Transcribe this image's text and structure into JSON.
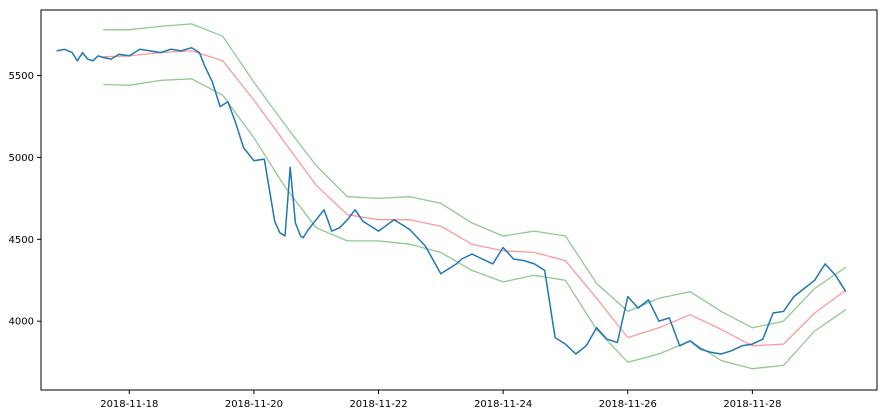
{
  "chart_data": {
    "type": "line",
    "title": "",
    "xlabel": "",
    "ylabel": "",
    "x_range": [
      "2018-11-16T14:00",
      "2018-11-30T00:00"
    ],
    "ylim": [
      3580,
      5900
    ],
    "grid": false,
    "legend": "none",
    "x_ticks": [
      "2018-11-18",
      "2018-11-20",
      "2018-11-22",
      "2018-11-24",
      "2018-11-26",
      "2018-11-28"
    ],
    "y_ticks": [
      4000,
      4500,
      5000,
      5500
    ],
    "colors": {
      "price": "#1f77b4",
      "middle": "#ff9999",
      "bands": "#90c990",
      "axes": "#000000"
    },
    "series": [
      {
        "role": "price",
        "x": [
          "2018-11-16T20:00",
          "2018-11-16T23:00",
          "2018-11-17T02:00",
          "2018-11-17T04:00",
          "2018-11-17T06:00",
          "2018-11-17T08:00",
          "2018-11-17T10:00",
          "2018-11-17T12:00",
          "2018-11-17T14:00",
          "2018-11-17T17:00",
          "2018-11-17T20:00",
          "2018-11-18T00:00",
          "2018-11-18T04:00",
          "2018-11-18T08:00",
          "2018-11-18T12:00",
          "2018-11-18T16:00",
          "2018-11-18T20:00",
          "2018-11-19T00:00",
          "2018-11-19T03:00",
          "2018-11-19T05:00",
          "2018-11-19T08:00",
          "2018-11-19T11:00",
          "2018-11-19T14:00",
          "2018-11-19T17:00",
          "2018-11-19T20:00",
          "2018-11-20T00:00",
          "2018-11-20T04:00",
          "2018-11-20T08:00",
          "2018-11-20T10:00",
          "2018-11-20T12:00",
          "2018-11-20T14:00",
          "2018-11-20T16:00",
          "2018-11-20T18:00",
          "2018-11-20T19:00",
          "2018-11-20T21:00",
          "2018-11-21T00:00",
          "2018-11-21T03:00",
          "2018-11-21T06:00",
          "2018-11-21T09:00",
          "2018-11-21T12:00",
          "2018-11-21T15:00",
          "2018-11-21T18:00",
          "2018-11-22T00:00",
          "2018-11-22T06:00",
          "2018-11-22T12:00",
          "2018-11-22T18:00",
          "2018-11-23T00:00",
          "2018-11-23T06:00",
          "2018-11-23T08:00",
          "2018-11-23T12:00",
          "2018-11-23T16:00",
          "2018-11-23T20:00",
          "2018-11-24T00:00",
          "2018-11-24T04:00",
          "2018-11-24T08:00",
          "2018-11-24T12:00",
          "2018-11-24T16:00",
          "2018-11-24T20:00",
          "2018-11-25T00:00",
          "2018-11-25T04:00",
          "2018-11-25T08:00",
          "2018-11-25T12:00",
          "2018-11-25T16:00",
          "2018-11-25T20:00",
          "2018-11-26T00:00",
          "2018-11-26T04:00",
          "2018-11-26T08:00",
          "2018-11-26T12:00",
          "2018-11-26T16:00",
          "2018-11-26T20:00",
          "2018-11-27T00:00",
          "2018-11-27T04:00",
          "2018-11-27T08:00",
          "2018-11-27T12:00",
          "2018-11-27T16:00",
          "2018-11-27T20:00",
          "2018-11-28T00:00",
          "2018-11-28T04:00",
          "2018-11-28T08:00",
          "2018-11-28T12:00",
          "2018-11-28T16:00",
          "2018-11-28T20:00",
          "2018-11-29T00:00",
          "2018-11-29T04:00",
          "2018-11-29T08:00",
          "2018-11-29T12:00"
        ],
        "values": [
          5650,
          5660,
          5640,
          5590,
          5640,
          5600,
          5590,
          5620,
          5610,
          5600,
          5630,
          5620,
          5660,
          5650,
          5640,
          5660,
          5650,
          5670,
          5640,
          5560,
          5460,
          5310,
          5340,
          5210,
          5060,
          4980,
          4990,
          4610,
          4540,
          4520,
          4940,
          4600,
          4520,
          4510,
          4560,
          4620,
          4680,
          4550,
          4570,
          4620,
          4680,
          4610,
          4550,
          4620,
          4560,
          4460,
          4290,
          4350,
          4380,
          4410,
          4380,
          4350,
          4450,
          4380,
          4370,
          4350,
          4310,
          3900,
          3860,
          3800,
          3850,
          3960,
          3890,
          3870,
          4150,
          4080,
          4130,
          4000,
          4020,
          3850,
          3880,
          3830,
          3810,
          3800,
          3820,
          3850,
          3860,
          3890,
          4050,
          4060,
          4150,
          4200,
          4250,
          4350,
          4280,
          4180
        ]
      },
      {
        "role": "middle",
        "x": [
          "2018-11-17T14:00",
          "2018-11-18T00:00",
          "2018-11-18T12:00",
          "2018-11-19T00:00",
          "2018-11-19T12:00",
          "2018-11-20T00:00",
          "2018-11-20T12:00",
          "2018-11-21T00:00",
          "2018-11-21T12:00",
          "2018-11-22T00:00",
          "2018-11-22T12:00",
          "2018-11-23T00:00",
          "2018-11-23T12:00",
          "2018-11-24T00:00",
          "2018-11-24T12:00",
          "2018-11-25T00:00",
          "2018-11-25T12:00",
          "2018-11-26T00:00",
          "2018-11-26T12:00",
          "2018-11-27T00:00",
          "2018-11-27T12:00",
          "2018-11-28T00:00",
          "2018-11-28T12:00",
          "2018-11-29T00:00",
          "2018-11-29T12:00"
        ],
        "values": [
          5615,
          5620,
          5640,
          5650,
          5590,
          5350,
          5090,
          4830,
          4650,
          4620,
          4620,
          4580,
          4470,
          4430,
          4420,
          4370,
          4140,
          3900,
          3960,
          4040,
          3950,
          3850,
          3860,
          4050,
          4190
        ]
      },
      {
        "role": "upper",
        "x": [
          "2018-11-17T14:00",
          "2018-11-18T00:00",
          "2018-11-18T12:00",
          "2018-11-19T00:00",
          "2018-11-19T12:00",
          "2018-11-20T00:00",
          "2018-11-20T12:00",
          "2018-11-21T00:00",
          "2018-11-21T12:00",
          "2018-11-22T00:00",
          "2018-11-22T12:00",
          "2018-11-23T00:00",
          "2018-11-23T12:00",
          "2018-11-24T00:00",
          "2018-11-24T12:00",
          "2018-11-25T00:00",
          "2018-11-25T12:00",
          "2018-11-26T00:00",
          "2018-11-26T12:00",
          "2018-11-27T00:00",
          "2018-11-27T12:00",
          "2018-11-28T00:00",
          "2018-11-28T12:00",
          "2018-11-29T00:00",
          "2018-11-29T12:00"
        ],
        "values": [
          5780,
          5780,
          5800,
          5815,
          5740,
          5460,
          5200,
          4950,
          4760,
          4750,
          4760,
          4720,
          4600,
          4520,
          4550,
          4520,
          4230,
          4060,
          4140,
          4180,
          4060,
          3960,
          4000,
          4200,
          4330
        ]
      },
      {
        "role": "lower",
        "x": [
          "2018-11-17T14:00",
          "2018-11-18T00:00",
          "2018-11-18T12:00",
          "2018-11-19T00:00",
          "2018-11-19T12:00",
          "2018-11-20T00:00",
          "2018-11-20T12:00",
          "2018-11-21T00:00",
          "2018-11-21T12:00",
          "2018-11-22T00:00",
          "2018-11-22T12:00",
          "2018-11-23T00:00",
          "2018-11-23T12:00",
          "2018-11-24T00:00",
          "2018-11-24T12:00",
          "2018-11-25T00:00",
          "2018-11-25T12:00",
          "2018-11-26T00:00",
          "2018-11-26T12:00",
          "2018-11-27T00:00",
          "2018-11-27T12:00",
          "2018-11-28T00:00",
          "2018-11-28T12:00",
          "2018-11-29T00:00",
          "2018-11-29T12:00"
        ],
        "values": [
          5445,
          5440,
          5470,
          5480,
          5380,
          5120,
          4820,
          4570,
          4490,
          4490,
          4470,
          4420,
          4310,
          4240,
          4280,
          4250,
          3950,
          3750,
          3800,
          3880,
          3760,
          3710,
          3730,
          3940,
          4070
        ]
      }
    ]
  }
}
